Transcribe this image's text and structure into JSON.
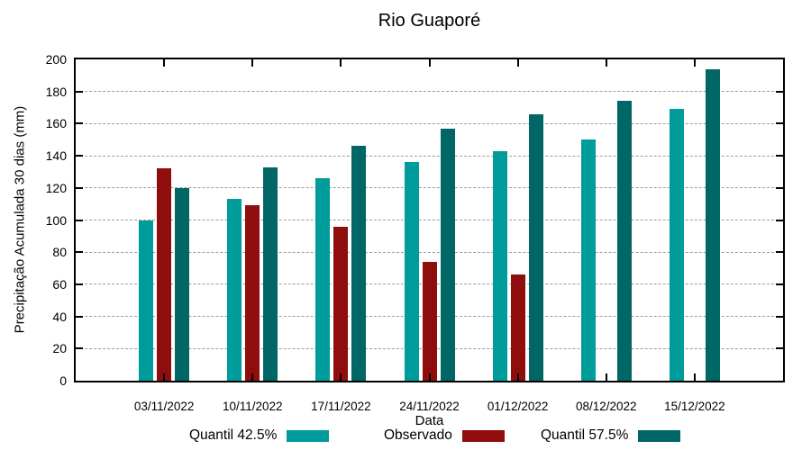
{
  "title": "Rio Guaporé",
  "axes": {
    "xlabel": "Data",
    "ylabel": "Precipitação Acumulada 30 dias (mm)"
  },
  "chart_data": {
    "type": "bar",
    "title": "Rio Guaporé",
    "xlabel": "Data",
    "ylabel": "Precipitação Acumulada 30 dias (mm)",
    "ylim": [
      0,
      200
    ],
    "ytick_step": 20,
    "grid": true,
    "legend_position": "bottom",
    "categories": [
      "03/11/2022",
      "10/11/2022",
      "17/11/2022",
      "24/11/2022",
      "01/12/2022",
      "08/12/2022",
      "15/12/2022"
    ],
    "series": [
      {
        "name": "Quantil 42.5%",
        "color": "#009B9B",
        "values": [
          100,
          113,
          126,
          136,
          143,
          150,
          169
        ]
      },
      {
        "name": "Observado",
        "color": "#8F0D0D",
        "values": [
          132,
          109,
          96,
          74,
          66,
          null,
          null
        ]
      },
      {
        "name": "Quantil 57.5%",
        "color": "#006666",
        "values": [
          120,
          133,
          146,
          157,
          166,
          174,
          194
        ]
      }
    ]
  }
}
